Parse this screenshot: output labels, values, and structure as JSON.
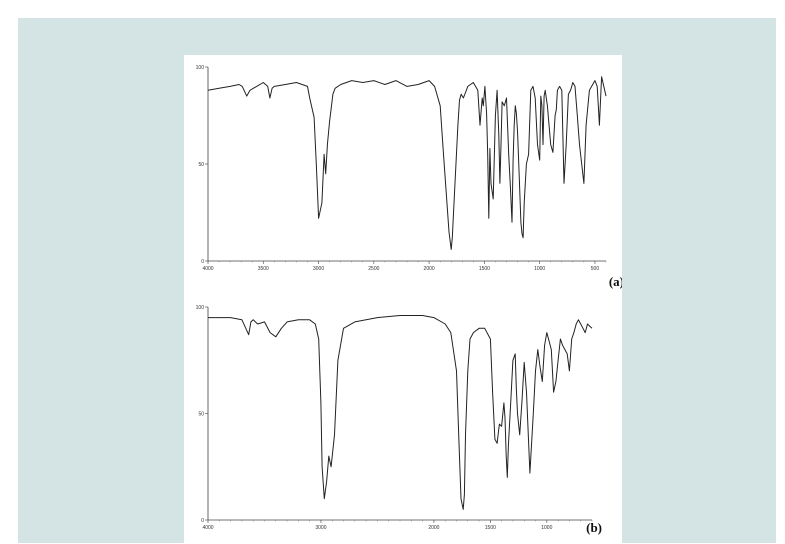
{
  "chart_data": [
    {
      "type": "line",
      "panel_label": "(a)",
      "xlim": [
        4000,
        400
      ],
      "ylim": [
        0,
        100
      ],
      "x_ticks": [
        "4000",
        "3500",
        "3000",
        "2500",
        "2000",
        "1500",
        "1000",
        "500"
      ],
      "y_ticks": [
        "0",
        "50",
        "100"
      ],
      "series": [
        {
          "x": [
            4000,
            3900,
            3800,
            3720,
            3690,
            3650,
            3620,
            3560,
            3500,
            3460,
            3440,
            3420,
            3400,
            3300,
            3200,
            3100,
            3080,
            3040,
            3020,
            3000,
            2970,
            2950,
            2935,
            2920,
            2900,
            2870,
            2850,
            2800,
            2700,
            2600,
            2500,
            2400,
            2300,
            2200,
            2100,
            2000,
            1950,
            1900,
            1870,
            1820,
            1800,
            1790,
            1770,
            1740,
            1725,
            1710,
            1690,
            1650,
            1600,
            1560,
            1540,
            1520,
            1510,
            1495,
            1480,
            1470,
            1460,
            1450,
            1440,
            1420,
            1400,
            1385,
            1370,
            1360,
            1350,
            1340,
            1320,
            1300,
            1280,
            1265,
            1250,
            1240,
            1230,
            1220,
            1210,
            1200,
            1185,
            1170,
            1160,
            1150,
            1140,
            1120,
            1100,
            1080,
            1060,
            1040,
            1020,
            1000,
            990,
            980,
            970,
            960,
            950,
            930,
            900,
            880,
            860,
            850,
            840,
            820,
            800,
            780,
            760,
            740,
            720,
            700,
            680,
            660,
            640,
            620,
            600,
            580,
            550,
            500,
            480,
            460,
            440,
            420,
            400
          ],
          "y": [
            88,
            89,
            90,
            91,
            90,
            85,
            88,
            90,
            92,
            90,
            84,
            89,
            90,
            91,
            92,
            90,
            84,
            74,
            50,
            22,
            30,
            55,
            45,
            60,
            72,
            86,
            89,
            91,
            93,
            92,
            93,
            91,
            93,
            90,
            91,
            93,
            90,
            80,
            55,
            15,
            6,
            12,
            35,
            70,
            83,
            86,
            84,
            90,
            92,
            88,
            70,
            84,
            80,
            90,
            76,
            55,
            22,
            58,
            40,
            32,
            75,
            88,
            65,
            40,
            60,
            82,
            80,
            84,
            55,
            38,
            20,
            52,
            70,
            80,
            76,
            66,
            44,
            20,
            14,
            12,
            30,
            50,
            55,
            88,
            90,
            84,
            60,
            52,
            85,
            80,
            60,
            85,
            88,
            80,
            60,
            56,
            75,
            78,
            88,
            90,
            88,
            40,
            60,
            86,
            88,
            92,
            90,
            75,
            60,
            50,
            40,
            70,
            88,
            93,
            90,
            70,
            95,
            90,
            85
          ]
        }
      ]
    },
    {
      "type": "line",
      "panel_label": "(b)",
      "xlim": [
        4000,
        600
      ],
      "ylim": [
        0,
        100
      ],
      "x_ticks": [
        "4000",
        "3000",
        "2000",
        "1500",
        "1000"
      ],
      "y_ticks": [
        "0",
        "50",
        "100"
      ],
      "series": [
        {
          "x": [
            4000,
            3900,
            3800,
            3700,
            3640,
            3620,
            3600,
            3560,
            3500,
            3450,
            3400,
            3350,
            3300,
            3200,
            3100,
            3050,
            3020,
            3000,
            2990,
            2970,
            2950,
            2930,
            2910,
            2880,
            2850,
            2800,
            2700,
            2500,
            2300,
            2100,
            2000,
            1900,
            1850,
            1800,
            1780,
            1760,
            1740,
            1730,
            1720,
            1700,
            1680,
            1650,
            1600,
            1550,
            1500,
            1480,
            1460,
            1440,
            1420,
            1400,
            1380,
            1370,
            1360,
            1350,
            1340,
            1320,
            1300,
            1280,
            1270,
            1260,
            1240,
            1220,
            1200,
            1180,
            1150,
            1120,
            1100,
            1080,
            1060,
            1040,
            1020,
            1000,
            980,
            960,
            940,
            920,
            900,
            880,
            860,
            840,
            820,
            800,
            780,
            760,
            740,
            720,
            700,
            680,
            660,
            640,
            620,
            600
          ],
          "y": [
            95,
            95,
            95,
            94,
            87,
            93,
            94,
            92,
            93,
            88,
            86,
            90,
            93,
            94,
            94,
            92,
            85,
            55,
            25,
            10,
            18,
            30,
            25,
            40,
            75,
            90,
            93,
            95,
            96,
            96,
            95,
            92,
            88,
            70,
            40,
            10,
            5,
            12,
            40,
            70,
            85,
            88,
            90,
            90,
            85,
            60,
            38,
            36,
            45,
            44,
            55,
            48,
            30,
            20,
            35,
            55,
            75,
            78,
            62,
            50,
            40,
            56,
            74,
            60,
            22,
            50,
            70,
            80,
            72,
            65,
            82,
            88,
            84,
            80,
            60,
            65,
            75,
            85,
            82,
            80,
            78,
            70,
            85,
            88,
            92,
            94,
            92,
            90,
            88,
            92,
            91,
            90
          ]
        }
      ]
    }
  ]
}
